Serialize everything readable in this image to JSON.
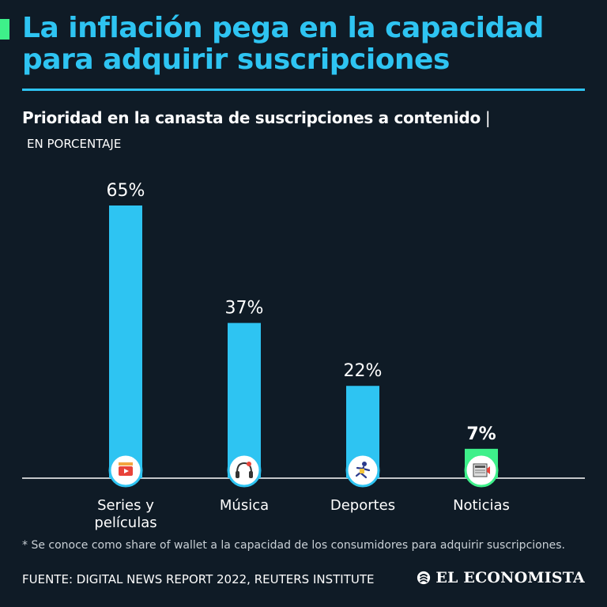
{
  "header": {
    "title": "La inflación pega en la capacidad para adquirir suscripciones",
    "subtitle": "Prioridad en la canasta de suscripciones a contenido",
    "separator": "|",
    "unit": "EN PORCENTAJE"
  },
  "chart_data": {
    "type": "bar",
    "title": "Prioridad en la canasta de suscripciones a contenido",
    "ylabel": "EN PORCENTAJE",
    "xlabel": "",
    "ylim": [
      0,
      65
    ],
    "categories": [
      "Series y películas",
      "Música",
      "Deportes",
      "Noticias"
    ],
    "category_lines": [
      [
        "Series y",
        "películas"
      ],
      [
        "Música"
      ],
      [
        "Deportes"
      ],
      [
        "Noticias"
      ]
    ],
    "values": [
      65,
      37,
      22,
      7
    ],
    "value_labels": [
      "65%",
      "37%",
      "22%",
      "7%"
    ],
    "bar_colors": [
      "#2ec4f2",
      "#2ec4f2",
      "#2ec4f2",
      "#3ef08a"
    ],
    "icons": [
      "clapperboard-icon",
      "headphones-icon",
      "runner-icon",
      "newspaper-icon"
    ],
    "grid": false
  },
  "footnote": "* Se conoce como share of wallet a la capacidad de los consumidores para adquirir suscripciones.",
  "source": "FUENTE: DIGITAL NEWS REPORT 2022, REUTERS INSTITUTE",
  "brand": "EL ECONOMISTA",
  "colors": {
    "background": "#0f1b26",
    "accent": "#2ec4f2",
    "highlight": "#3ef08a"
  }
}
